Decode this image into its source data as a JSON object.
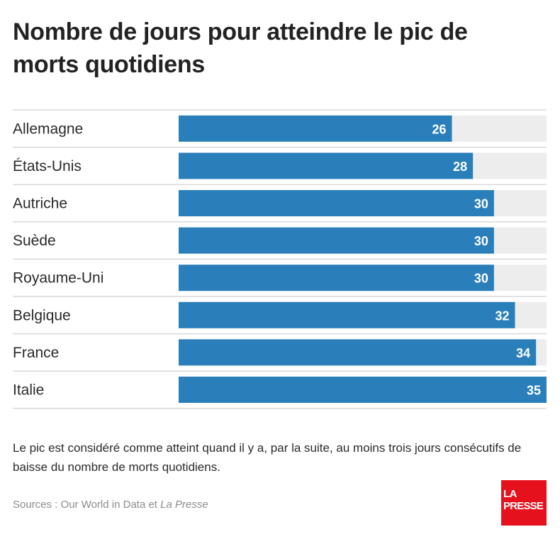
{
  "title": "Nombre de jours pour atteindre le pic de morts quotidiens",
  "note": "Le pic est considéré comme atteint quand il y a, par la suite, au moins trois jours consécutifs de baisse du nombre de morts quotidiens.",
  "source": {
    "prefix": "Sources : Our World in Data et ",
    "publication": "La Presse"
  },
  "logo": {
    "line1": "LA",
    "line2": "PRESSE"
  },
  "colors": {
    "bar": "#2a7fba",
    "track": "#ededed",
    "divider": "#d9d9d9",
    "logo": "#e5121d"
  },
  "chart_data": {
    "type": "bar",
    "orientation": "horizontal",
    "title": "Nombre de jours pour atteindre le pic de morts quotidiens",
    "categories": [
      "Allemagne",
      "États-Unis",
      "Autriche",
      "Suède",
      "Royaume-Uni",
      "Belgique",
      "France",
      "Italie"
    ],
    "values": [
      26,
      28,
      30,
      30,
      30,
      32,
      34,
      35
    ],
    "xlim": [
      0,
      35
    ],
    "grid": false,
    "legend": "none",
    "data_labels": true
  }
}
